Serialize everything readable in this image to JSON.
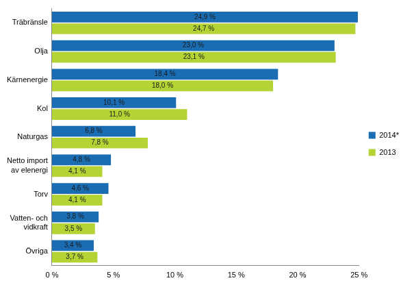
{
  "chart_data": {
    "type": "bar",
    "orientation": "horizontal",
    "categories": [
      "Träbränsle",
      "Olja",
      "Kärnenergie",
      "Kol",
      "Naturgas",
      "Netto import av elenergi",
      "Torv",
      "Vatten- och vidkraft",
      "Övriga"
    ],
    "series": [
      {
        "name": "2014*",
        "color": "#1b6db3",
        "values": [
          24.9,
          23.0,
          18.4,
          10.1,
          6.8,
          4.8,
          4.6,
          3.8,
          3.4
        ],
        "value_labels": [
          "24,9 %",
          "23,0 %",
          "18,4 %",
          "10,1 %",
          "6,8 %",
          "4,8 %",
          "4,6 %",
          "3,8 %",
          "3,4 %"
        ]
      },
      {
        "name": "2013",
        "color": "#b4d334",
        "values": [
          24.7,
          23.1,
          18.0,
          11.0,
          7.8,
          4.1,
          4.1,
          3.5,
          3.7
        ],
        "value_labels": [
          "24,7 %",
          "23,1 %",
          "18,0 %",
          "11,0 %",
          "7,8 %",
          "4,1 %",
          "4,1 %",
          "3,5 %",
          "3,7 %"
        ]
      }
    ],
    "xlim": [
      0,
      25
    ],
    "xticks": [
      {
        "value": 0,
        "label": "0 %"
      },
      {
        "value": 5,
        "label": "5 %"
      },
      {
        "value": 10,
        "label": "10 %"
      },
      {
        "value": 15,
        "label": "15 %"
      },
      {
        "value": 20,
        "label": "20 %"
      },
      {
        "value": 25,
        "label": "25 %"
      }
    ],
    "grid": false,
    "legend": "right",
    "data_labels": true
  }
}
